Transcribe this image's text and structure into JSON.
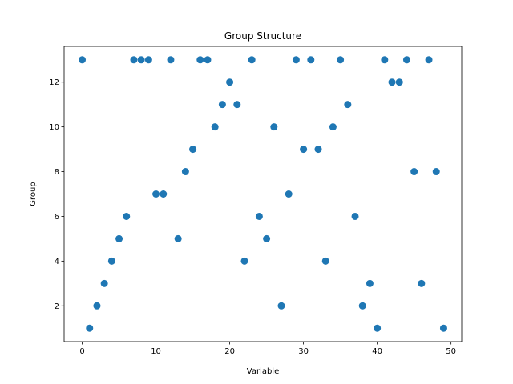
{
  "chart_data": {
    "type": "scatter",
    "title": "Group Structure",
    "xlabel": "Variable",
    "ylabel": "Group",
    "xlim": [
      -2.45,
      51.45
    ],
    "ylim": [
      0.4,
      13.6
    ],
    "xticks": [
      0,
      10,
      20,
      30,
      40,
      50
    ],
    "yticks": [
      2,
      4,
      6,
      8,
      10,
      12
    ],
    "grid": false,
    "color": "#1f77b4",
    "x": [
      0,
      1,
      2,
      3,
      4,
      5,
      6,
      7,
      8,
      9,
      10,
      11,
      12,
      13,
      14,
      15,
      16,
      17,
      18,
      19,
      20,
      21,
      22,
      23,
      24,
      25,
      26,
      27,
      28,
      29,
      30,
      31,
      32,
      33,
      34,
      35,
      36,
      37,
      38,
      39,
      40,
      41,
      42,
      43,
      44,
      45,
      46,
      47,
      48,
      49
    ],
    "y": [
      13,
      1,
      2,
      3,
      4,
      5,
      6,
      13,
      13,
      13,
      7,
      7,
      13,
      5,
      8,
      9,
      13,
      13,
      10,
      11,
      12,
      11,
      4,
      13,
      6,
      5,
      10,
      2,
      7,
      13,
      9,
      13,
      9,
      4,
      10,
      13,
      11,
      6,
      2,
      3,
      1,
      13,
      12,
      12,
      13,
      8,
      3,
      13,
      8,
      1
    ]
  }
}
